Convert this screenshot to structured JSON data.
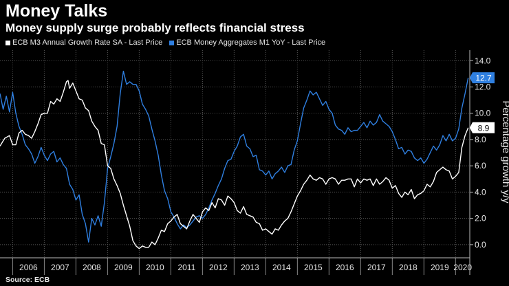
{
  "header": {
    "title": "Money Talks",
    "subtitle": "Money supply surge probably reflects financial stress"
  },
  "source": "Source: ECB",
  "colors": {
    "m3": "#ffffff",
    "m1": "#2f7fe0",
    "grid": "#555555",
    "background": "#000000"
  },
  "chart_data": {
    "type": "line",
    "title": "Money Talks",
    "subtitle": "Money supply surge probably reflects financial stress",
    "ylabel": "Percentage growth y/y",
    "xlabel": "",
    "ylim": [
      -1.0,
      14.8
    ],
    "xlim": [
      2005.6,
      2020.45
    ],
    "y_ticks": [
      0.0,
      2.0,
      4.0,
      6.0,
      8.0,
      10.0,
      12.0,
      14.0
    ],
    "y_tick_labels": [
      "0.0",
      "2.0",
      "4.0",
      "6.0",
      "8.0",
      "10.0",
      "12.0",
      "14.0"
    ],
    "x_labels": [
      "2006",
      "2007",
      "2008",
      "2009",
      "2010",
      "2011",
      "2012",
      "2013",
      "2014",
      "2015",
      "2016",
      "2017",
      "2018",
      "2019",
      "2020"
    ],
    "grid": true,
    "legend_position": "top-left",
    "series": [
      {
        "name": "ECB M3 Annual Growth Rate SA - Last Price",
        "color": "#ffffff",
        "last_value": "8.9",
        "points": [
          [
            2005.6,
            7.5
          ],
          [
            2005.75,
            8.1
          ],
          [
            2005.9,
            8.3
          ],
          [
            2006.0,
            7.6
          ],
          [
            2006.1,
            7.6
          ],
          [
            2006.2,
            8.5
          ],
          [
            2006.3,
            8.7
          ],
          [
            2006.4,
            8.4
          ],
          [
            2006.5,
            8.3
          ],
          [
            2006.6,
            8.1
          ],
          [
            2006.7,
            8.6
          ],
          [
            2006.8,
            9.2
          ],
          [
            2006.9,
            9.9
          ],
          [
            2007.0,
            10.0
          ],
          [
            2007.1,
            10.0
          ],
          [
            2007.2,
            10.9
          ],
          [
            2007.3,
            10.7
          ],
          [
            2007.4,
            11.1
          ],
          [
            2007.5,
            10.9
          ],
          [
            2007.6,
            11.6
          ],
          [
            2007.7,
            12.4
          ],
          [
            2007.75,
            12.5
          ],
          [
            2007.8,
            11.9
          ],
          [
            2007.9,
            12.3
          ],
          [
            2008.0,
            11.7
          ],
          [
            2008.1,
            11.1
          ],
          [
            2008.2,
            11.0
          ],
          [
            2008.3,
            10.4
          ],
          [
            2008.4,
            10.2
          ],
          [
            2008.5,
            9.4
          ],
          [
            2008.6,
            9.0
          ],
          [
            2008.7,
            8.7
          ],
          [
            2008.8,
            7.7
          ],
          [
            2008.9,
            7.6
          ],
          [
            2009.0,
            6.0
          ],
          [
            2009.1,
            5.8
          ],
          [
            2009.2,
            5.0
          ],
          [
            2009.3,
            4.5
          ],
          [
            2009.4,
            3.9
          ],
          [
            2009.5,
            3.0
          ],
          [
            2009.6,
            2.2
          ],
          [
            2009.7,
            1.4
          ],
          [
            2009.8,
            0.3
          ],
          [
            2009.9,
            -0.1
          ],
          [
            2010.0,
            -0.3
          ],
          [
            2010.1,
            -0.1
          ],
          [
            2010.2,
            -0.2
          ],
          [
            2010.3,
            -0.2
          ],
          [
            2010.4,
            0.2
          ],
          [
            2010.5,
            0.0
          ],
          [
            2010.6,
            0.5
          ],
          [
            2010.7,
            1.1
          ],
          [
            2010.8,
            1.0
          ],
          [
            2010.9,
            1.6
          ],
          [
            2011.0,
            1.8
          ],
          [
            2011.1,
            2.1
          ],
          [
            2011.2,
            2.3
          ],
          [
            2011.3,
            1.6
          ],
          [
            2011.4,
            1.4
          ],
          [
            2011.5,
            1.2
          ],
          [
            2011.6,
            1.8
          ],
          [
            2011.7,
            2.3
          ],
          [
            2011.8,
            2.0
          ],
          [
            2011.9,
            1.7
          ],
          [
            2012.0,
            2.5
          ],
          [
            2012.1,
            2.8
          ],
          [
            2012.2,
            2.6
          ],
          [
            2012.3,
            3.2
          ],
          [
            2012.4,
            2.8
          ],
          [
            2012.5,
            3.5
          ],
          [
            2012.6,
            3.4
          ],
          [
            2012.7,
            3.0
          ],
          [
            2012.8,
            3.7
          ],
          [
            2012.9,
            3.5
          ],
          [
            2013.0,
            3.2
          ],
          [
            2013.1,
            2.6
          ],
          [
            2013.2,
            2.4
          ],
          [
            2013.3,
            2.9
          ],
          [
            2013.4,
            2.3
          ],
          [
            2013.5,
            2.2
          ],
          [
            2013.6,
            2.1
          ],
          [
            2013.7,
            1.7
          ],
          [
            2013.8,
            1.6
          ],
          [
            2013.9,
            1.1
          ],
          [
            2014.0,
            1.2
          ],
          [
            2014.1,
            1.0
          ],
          [
            2014.2,
            0.8
          ],
          [
            2014.3,
            1.2
          ],
          [
            2014.4,
            1.1
          ],
          [
            2014.5,
            1.5
          ],
          [
            2014.6,
            1.8
          ],
          [
            2014.7,
            2.0
          ],
          [
            2014.8,
            2.5
          ],
          [
            2014.9,
            3.1
          ],
          [
            2015.0,
            3.7
          ],
          [
            2015.1,
            4.1
          ],
          [
            2015.2,
            4.6
          ],
          [
            2015.3,
            4.9
          ],
          [
            2015.4,
            5.3
          ],
          [
            2015.5,
            5.0
          ],
          [
            2015.6,
            4.9
          ],
          [
            2015.7,
            5.1
          ],
          [
            2015.8,
            5.0
          ],
          [
            2015.9,
            4.6
          ],
          [
            2016.0,
            5.0
          ],
          [
            2016.1,
            5.1
          ],
          [
            2016.2,
            5.0
          ],
          [
            2016.3,
            4.6
          ],
          [
            2016.4,
            4.9
          ],
          [
            2016.5,
            4.9
          ],
          [
            2016.6,
            5.0
          ],
          [
            2016.7,
            5.0
          ],
          [
            2016.8,
            4.4
          ],
          [
            2016.9,
            5.0
          ],
          [
            2017.0,
            4.7
          ],
          [
            2017.1,
            5.0
          ],
          [
            2017.2,
            4.9
          ],
          [
            2017.3,
            5.0
          ],
          [
            2017.4,
            4.5
          ],
          [
            2017.5,
            5.0
          ],
          [
            2017.6,
            4.6
          ],
          [
            2017.7,
            4.8
          ],
          [
            2017.8,
            5.1
          ],
          [
            2017.9,
            4.9
          ],
          [
            2018.0,
            4.3
          ],
          [
            2018.1,
            4.5
          ],
          [
            2018.2,
            3.9
          ],
          [
            2018.3,
            3.6
          ],
          [
            2018.4,
            4.0
          ],
          [
            2018.5,
            3.8
          ],
          [
            2018.6,
            4.2
          ],
          [
            2018.7,
            3.5
          ],
          [
            2018.8,
            3.8
          ],
          [
            2018.9,
            3.9
          ],
          [
            2019.0,
            4.1
          ],
          [
            2019.1,
            4.6
          ],
          [
            2019.2,
            4.4
          ],
          [
            2019.3,
            4.8
          ],
          [
            2019.4,
            5.5
          ],
          [
            2019.5,
            5.7
          ],
          [
            2019.6,
            5.9
          ],
          [
            2019.7,
            5.7
          ],
          [
            2019.8,
            5.6
          ],
          [
            2019.9,
            5.0
          ],
          [
            2020.0,
            5.2
          ],
          [
            2020.1,
            5.5
          ],
          [
            2020.2,
            7.4
          ],
          [
            2020.3,
            8.3
          ],
          [
            2020.4,
            8.9
          ]
        ]
      },
      {
        "name": "ECB Money Aggregates M1 YoY - Last Price",
        "color": "#2f7fe0",
        "last_value": "12.7",
        "points": [
          [
            2005.6,
            11.5
          ],
          [
            2005.7,
            10.3
          ],
          [
            2005.8,
            11.3
          ],
          [
            2005.9,
            10.1
          ],
          [
            2006.0,
            11.6
          ],
          [
            2006.1,
            10.0
          ],
          [
            2006.2,
            9.0
          ],
          [
            2006.3,
            8.4
          ],
          [
            2006.4,
            7.6
          ],
          [
            2006.5,
            7.3
          ],
          [
            2006.6,
            6.9
          ],
          [
            2006.7,
            6.2
          ],
          [
            2006.8,
            6.7
          ],
          [
            2006.9,
            7.4
          ],
          [
            2007.0,
            6.8
          ],
          [
            2007.1,
            6.4
          ],
          [
            2007.2,
            6.9
          ],
          [
            2007.3,
            7.1
          ],
          [
            2007.4,
            6.3
          ],
          [
            2007.5,
            6.6
          ],
          [
            2007.6,
            6.1
          ],
          [
            2007.7,
            5.8
          ],
          [
            2007.8,
            4.6
          ],
          [
            2007.9,
            4.2
          ],
          [
            2008.0,
            3.4
          ],
          [
            2008.1,
            3.8
          ],
          [
            2008.2,
            2.3
          ],
          [
            2008.3,
            1.6
          ],
          [
            2008.4,
            0.2
          ],
          [
            2008.5,
            2.0
          ],
          [
            2008.6,
            1.5
          ],
          [
            2008.7,
            2.2
          ],
          [
            2008.8,
            1.4
          ],
          [
            2008.9,
            3.2
          ],
          [
            2009.0,
            5.8
          ],
          [
            2009.1,
            6.7
          ],
          [
            2009.2,
            7.7
          ],
          [
            2009.3,
            9.0
          ],
          [
            2009.4,
            11.5
          ],
          [
            2009.5,
            13.2
          ],
          [
            2009.6,
            12.2
          ],
          [
            2009.7,
            12.4
          ],
          [
            2009.8,
            12.2
          ],
          [
            2009.9,
            12.2
          ],
          [
            2010.0,
            11.7
          ],
          [
            2010.1,
            10.7
          ],
          [
            2010.2,
            10.3
          ],
          [
            2010.3,
            9.8
          ],
          [
            2010.4,
            8.8
          ],
          [
            2010.5,
            7.9
          ],
          [
            2010.6,
            6.8
          ],
          [
            2010.7,
            5.3
          ],
          [
            2010.8,
            4.1
          ],
          [
            2010.9,
            3.5
          ],
          [
            2011.0,
            2.5
          ],
          [
            2011.1,
            2.1
          ],
          [
            2011.2,
            1.6
          ],
          [
            2011.3,
            1.2
          ],
          [
            2011.4,
            1.5
          ],
          [
            2011.5,
            1.3
          ],
          [
            2011.6,
            1.5
          ],
          [
            2011.7,
            1.8
          ],
          [
            2011.8,
            2.1
          ],
          [
            2011.9,
            2.2
          ],
          [
            2012.0,
            2.0
          ],
          [
            2012.1,
            2.3
          ],
          [
            2012.2,
            2.8
          ],
          [
            2012.3,
            3.4
          ],
          [
            2012.4,
            3.9
          ],
          [
            2012.5,
            4.5
          ],
          [
            2012.6,
            5.0
          ],
          [
            2012.7,
            5.8
          ],
          [
            2012.8,
            6.4
          ],
          [
            2012.9,
            6.5
          ],
          [
            2013.0,
            7.1
          ],
          [
            2013.1,
            7.5
          ],
          [
            2013.2,
            8.2
          ],
          [
            2013.3,
            8.4
          ],
          [
            2013.4,
            7.5
          ],
          [
            2013.5,
            7.3
          ],
          [
            2013.6,
            6.7
          ],
          [
            2013.7,
            6.8
          ],
          [
            2013.8,
            5.7
          ],
          [
            2013.9,
            5.6
          ],
          [
            2014.0,
            5.3
          ],
          [
            2014.1,
            5.6
          ],
          [
            2014.2,
            5.0
          ],
          [
            2014.3,
            5.4
          ],
          [
            2014.4,
            5.6
          ],
          [
            2014.5,
            5.9
          ],
          [
            2014.6,
            5.5
          ],
          [
            2014.7,
            6.0
          ],
          [
            2014.8,
            6.1
          ],
          [
            2014.9,
            7.2
          ],
          [
            2015.0,
            7.9
          ],
          [
            2015.1,
            9.2
          ],
          [
            2015.2,
            10.4
          ],
          [
            2015.3,
            11.0
          ],
          [
            2015.4,
            11.7
          ],
          [
            2015.5,
            11.4
          ],
          [
            2015.6,
            11.6
          ],
          [
            2015.7,
            11.1
          ],
          [
            2015.8,
            10.6
          ],
          [
            2015.9,
            10.9
          ],
          [
            2016.0,
            10.3
          ],
          [
            2016.1,
            10.0
          ],
          [
            2016.2,
            9.1
          ],
          [
            2016.3,
            8.8
          ],
          [
            2016.4,
            8.7
          ],
          [
            2016.5,
            8.4
          ],
          [
            2016.6,
            8.9
          ],
          [
            2016.7,
            8.6
          ],
          [
            2016.8,
            8.7
          ],
          [
            2016.9,
            8.7
          ],
          [
            2017.0,
            9.0
          ],
          [
            2017.1,
            9.3
          ],
          [
            2017.2,
            8.9
          ],
          [
            2017.3,
            9.4
          ],
          [
            2017.4,
            9.1
          ],
          [
            2017.5,
            9.3
          ],
          [
            2017.6,
            9.9
          ],
          [
            2017.7,
            9.4
          ],
          [
            2017.8,
            9.2
          ],
          [
            2017.9,
            9.0
          ],
          [
            2018.0,
            8.6
          ],
          [
            2018.1,
            8.0
          ],
          [
            2018.2,
            7.3
          ],
          [
            2018.3,
            7.4
          ],
          [
            2018.4,
            6.9
          ],
          [
            2018.5,
            7.2
          ],
          [
            2018.6,
            7.1
          ],
          [
            2018.7,
            6.6
          ],
          [
            2018.8,
            6.4
          ],
          [
            2018.9,
            6.6
          ],
          [
            2019.0,
            6.2
          ],
          [
            2019.1,
            6.5
          ],
          [
            2019.2,
            7.0
          ],
          [
            2019.3,
            7.5
          ],
          [
            2019.4,
            7.2
          ],
          [
            2019.5,
            7.6
          ],
          [
            2019.6,
            8.3
          ],
          [
            2019.7,
            7.9
          ],
          [
            2019.8,
            8.4
          ],
          [
            2019.9,
            7.9
          ],
          [
            2020.0,
            8.1
          ],
          [
            2020.1,
            8.8
          ],
          [
            2020.2,
            10.4
          ],
          [
            2020.3,
            11.5
          ],
          [
            2020.4,
            12.7
          ]
        ]
      }
    ]
  }
}
